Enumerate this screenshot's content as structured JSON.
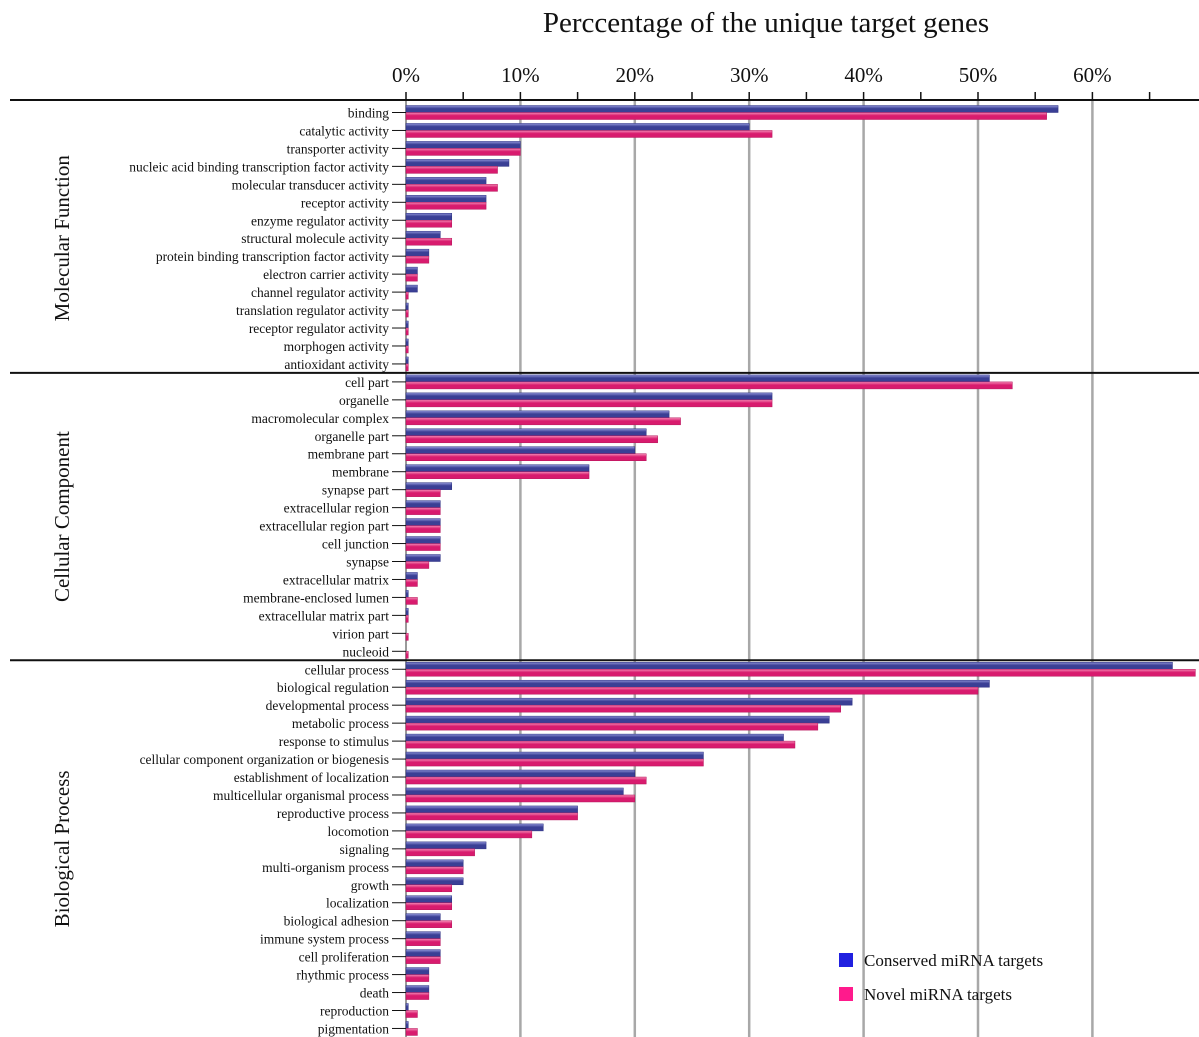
{
  "chart_data": {
    "type": "bar",
    "orientation": "horizontal",
    "title": "Perccentage of the unique target genes",
    "x_ticks": [
      "0%",
      "10%",
      "20%",
      "30%",
      "40%",
      "50%",
      "60%"
    ],
    "xlim": [
      0,
      69
    ],
    "grid": true,
    "legend_position": "bottom-right",
    "series": [
      {
        "name": "Conserved miRNA targets",
        "color": "#2020e0"
      },
      {
        "name": "Novel miRNA targets",
        "color": "#ff1a8c"
      }
    ],
    "groups": [
      {
        "name": "Molecular Function",
        "categories": [
          {
            "label": "binding",
            "conserved": 57,
            "novel": 56
          },
          {
            "label": "catalytic activity",
            "conserved": 30,
            "novel": 32
          },
          {
            "label": "transporter activity",
            "conserved": 10,
            "novel": 10
          },
          {
            "label": "nucleic acid binding transcription factor activity",
            "conserved": 9,
            "novel": 8
          },
          {
            "label": "molecular transducer activity",
            "conserved": 7,
            "novel": 8
          },
          {
            "label": "receptor activity",
            "conserved": 7,
            "novel": 7
          },
          {
            "label": "enzyme regulator activity",
            "conserved": 4,
            "novel": 4
          },
          {
            "label": "structural molecule activity",
            "conserved": 3,
            "novel": 4
          },
          {
            "label": "protein binding transcription factor activity",
            "conserved": 2,
            "novel": 2
          },
          {
            "label": "electron carrier activity",
            "conserved": 1,
            "novel": 1
          },
          {
            "label": "channel regulator activity",
            "conserved": 1,
            "novel": 0.2
          },
          {
            "label": "translation regulator activity",
            "conserved": 0.2,
            "novel": 0.2
          },
          {
            "label": "receptor regulator activity",
            "conserved": 0.2,
            "novel": 0.2
          },
          {
            "label": "morphogen activity",
            "conserved": 0.2,
            "novel": 0.2
          },
          {
            "label": "antioxidant activity",
            "conserved": 0.2,
            "novel": 0.2
          }
        ]
      },
      {
        "name": "Cellular Component",
        "categories": [
          {
            "label": "cell part",
            "conserved": 51,
            "novel": 53
          },
          {
            "label": "organelle",
            "conserved": 32,
            "novel": 32
          },
          {
            "label": "macromolecular complex",
            "conserved": 23,
            "novel": 24
          },
          {
            "label": "organelle part",
            "conserved": 21,
            "novel": 22
          },
          {
            "label": "membrane part",
            "conserved": 20,
            "novel": 21
          },
          {
            "label": "membrane",
            "conserved": 16,
            "novel": 16
          },
          {
            "label": "synapse part",
            "conserved": 4,
            "novel": 3
          },
          {
            "label": "extracellular region",
            "conserved": 3,
            "novel": 3
          },
          {
            "label": "extracellular region part",
            "conserved": 3,
            "novel": 3
          },
          {
            "label": "cell junction",
            "conserved": 3,
            "novel": 3
          },
          {
            "label": "synapse",
            "conserved": 3,
            "novel": 2
          },
          {
            "label": "extracellular matrix",
            "conserved": 1,
            "novel": 1
          },
          {
            "label": "membrane-enclosed lumen",
            "conserved": 0.2,
            "novel": 1
          },
          {
            "label": "extracellular matrix part",
            "conserved": 0.2,
            "novel": 0.2
          },
          {
            "label": "virion part",
            "conserved": 0,
            "novel": 0.2
          },
          {
            "label": "nucleoid",
            "conserved": 0,
            "novel": 0.2
          }
        ]
      },
      {
        "name": "Biological Process",
        "categories": [
          {
            "label": "cellular process",
            "conserved": 67,
            "novel": 69
          },
          {
            "label": "biological regulation",
            "conserved": 51,
            "novel": 50
          },
          {
            "label": "developmental process",
            "conserved": 39,
            "novel": 38
          },
          {
            "label": "metabolic process",
            "conserved": 37,
            "novel": 36
          },
          {
            "label": "response to stimulus",
            "conserved": 33,
            "novel": 34
          },
          {
            "label": "cellular component organization or biogenesis",
            "conserved": 26,
            "novel": 26
          },
          {
            "label": "establishment of localization",
            "conserved": 20,
            "novel": 21
          },
          {
            "label": "multicellular organismal process",
            "conserved": 19,
            "novel": 20
          },
          {
            "label": "reproductive process",
            "conserved": 15,
            "novel": 15
          },
          {
            "label": "locomotion",
            "conserved": 12,
            "novel": 11
          },
          {
            "label": "signaling",
            "conserved": 7,
            "novel": 6
          },
          {
            "label": "multi-organism process",
            "conserved": 5,
            "novel": 5
          },
          {
            "label": "growth",
            "conserved": 5,
            "novel": 4
          },
          {
            "label": "localization",
            "conserved": 4,
            "novel": 4
          },
          {
            "label": "biological adhesion",
            "conserved": 3,
            "novel": 4
          },
          {
            "label": "immune system process",
            "conserved": 3,
            "novel": 3
          },
          {
            "label": "cell proliferation",
            "conserved": 3,
            "novel": 3
          },
          {
            "label": "rhythmic process",
            "conserved": 2,
            "novel": 2
          },
          {
            "label": "death",
            "conserved": 2,
            "novel": 2
          },
          {
            "label": "reproduction",
            "conserved": 0.2,
            "novel": 1
          },
          {
            "label": "pigmentation",
            "conserved": 0.2,
            "novel": 1
          }
        ]
      }
    ]
  }
}
